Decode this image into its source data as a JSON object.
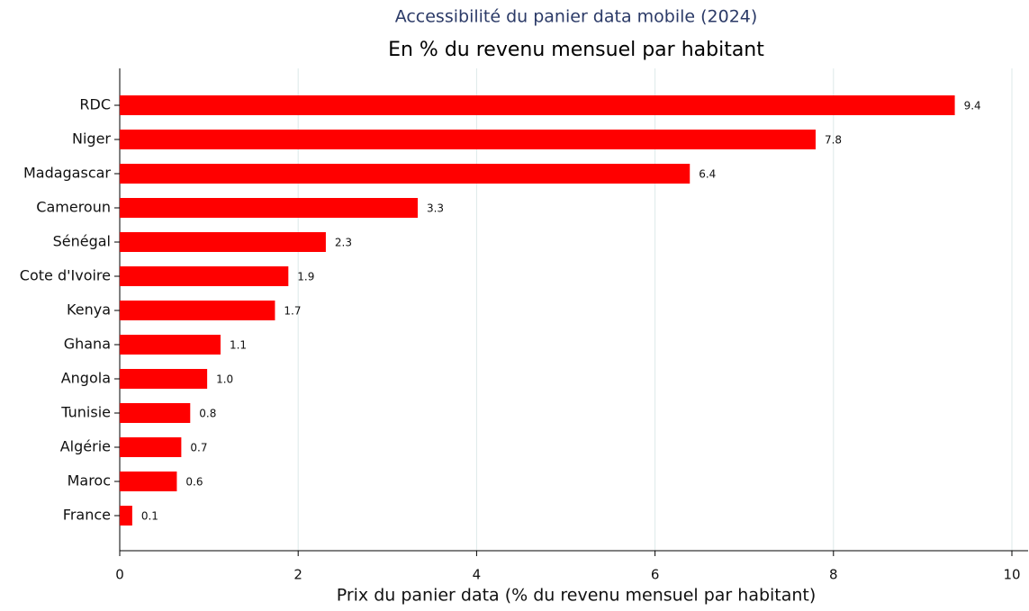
{
  "chart_data": {
    "type": "bar",
    "orientation": "horizontal",
    "title": "Accessibilité du panier data mobile (2024)",
    "subtitle": "En % du revenu mensuel par habitant",
    "x_label": "Prix du panier data (% du revenu mensuel par habitant)",
    "categories": [
      "RDC",
      "Niger",
      "Madagascar",
      "Cameroun",
      "Sénégal",
      "Cote d'Ivoire",
      "Kenya",
      "Ghana",
      "Angola",
      "Tunisie",
      "Algérie",
      "Maroc",
      "France"
    ],
    "values": [
      9.36,
      7.8,
      6.39,
      3.34,
      2.31,
      1.89,
      1.74,
      1.13,
      0.98,
      0.79,
      0.69,
      0.64,
      0.14
    ],
    "value_labels": [
      "9.4",
      "7.8",
      "6.4",
      "3.3",
      "2.3",
      "1.9",
      "1.7",
      "1.1",
      "1.0",
      "0.8",
      "0.7",
      "0.6",
      "0.1"
    ],
    "color": "#ff0000",
    "xlim": [
      0,
      10
    ],
    "xticks": [
      0,
      2,
      4,
      6,
      8,
      10
    ],
    "grid": true
  }
}
